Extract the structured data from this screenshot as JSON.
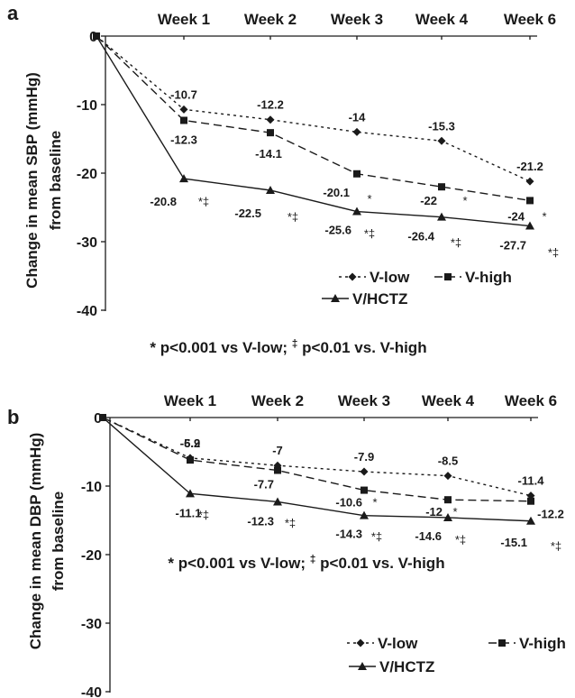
{
  "chart_data": [
    {
      "panel": "a",
      "type": "line",
      "x_categories": [
        "",
        "Week 1",
        "Week 2",
        "Week 3",
        "Week 4",
        "Week 6"
      ],
      "ylabel_line1": "Change in mean SBP (mmHg)",
      "ylabel_line2": "from baseline",
      "ylim": [
        -40,
        0
      ],
      "yticks": [
        "0",
        "-10",
        "-20",
        "-30",
        "-40"
      ],
      "series": [
        {
          "name": "V-low",
          "style": "dotted",
          "marker": "diamond",
          "values": [
            0,
            -10.7,
            -12.2,
            -14,
            -15.3,
            -21.2
          ],
          "labels": [
            "",
            "-10.7",
            "-12.2",
            "-14",
            "-15.3",
            "-21.2"
          ],
          "sig": [
            "",
            "",
            "",
            "",
            "",
            ""
          ]
        },
        {
          "name": "V-high",
          "style": "dashed",
          "marker": "square",
          "values": [
            0,
            -12.3,
            -14.1,
            -20.1,
            -22,
            -24
          ],
          "labels": [
            "",
            "-12.3",
            "-14.1",
            "-20.1",
            "-22",
            "-24"
          ],
          "sig": [
            "",
            "",
            "",
            "*",
            "*",
            "*"
          ]
        },
        {
          "name": "V/HCTZ",
          "style": "solid",
          "marker": "triangle",
          "values": [
            0,
            -20.8,
            -22.5,
            -25.6,
            -26.4,
            -27.7
          ],
          "labels": [
            "",
            "-20.8",
            "-22.5",
            "-25.6",
            "-26.4",
            "-27.7"
          ],
          "sig": [
            "",
            "*‡",
            "*‡",
            "*‡",
            "*‡",
            "*‡"
          ]
        }
      ],
      "footnote_a": "* p<0.001 vs V-low; ",
      "footnote_dagger": "‡",
      "footnote_b": " p<0.01 vs. V-high",
      "legend_position": "bottom-right"
    },
    {
      "panel": "b",
      "type": "line",
      "x_categories": [
        "",
        "Week 1",
        "Week 2",
        "Week 3",
        "Week 4",
        "Week 6"
      ],
      "ylabel_line1": "Change in mean DBP (mmHg)",
      "ylabel_line2": "from baseline",
      "ylim": [
        -40,
        0
      ],
      "yticks": [
        "0",
        "-10",
        "-20",
        "-30",
        "-40"
      ],
      "series": [
        {
          "name": "V-low",
          "style": "dotted",
          "marker": "diamond",
          "values": [
            0,
            -5.9,
            -7,
            -7.9,
            -8.5,
            -11.4
          ],
          "labels": [
            "",
            "-5.9",
            "-7",
            "-7.9",
            "-8.5",
            "-11.4"
          ],
          "sig": [
            "",
            "",
            "",
            "",
            "",
            ""
          ]
        },
        {
          "name": "V-high",
          "style": "dashed",
          "marker": "square",
          "values": [
            0,
            -6.2,
            -7.7,
            -10.6,
            -12,
            -12.2
          ],
          "labels": [
            "",
            "-6.2",
            "-7.7",
            "-10.6",
            "-12",
            "-12.2"
          ],
          "sig": [
            "",
            "",
            "",
            "*",
            "*",
            ""
          ]
        },
        {
          "name": "V/HCTZ",
          "style": "solid",
          "marker": "triangle",
          "values": [
            0,
            -11.1,
            -12.3,
            -14.3,
            -14.6,
            -15.1
          ],
          "labels": [
            "",
            "-11.1",
            "-12.3",
            "-14.3",
            "-14.6",
            "-15.1"
          ],
          "sig": [
            "",
            "*‡",
            "*‡",
            "*‡",
            "*‡",
            "*‡"
          ]
        }
      ],
      "footnote_a": "* p<0.001 vs V-low; ",
      "footnote_dagger": "‡",
      "footnote_b": " p<0.01 vs. V-high",
      "legend_position": "bottom-right"
    }
  ]
}
